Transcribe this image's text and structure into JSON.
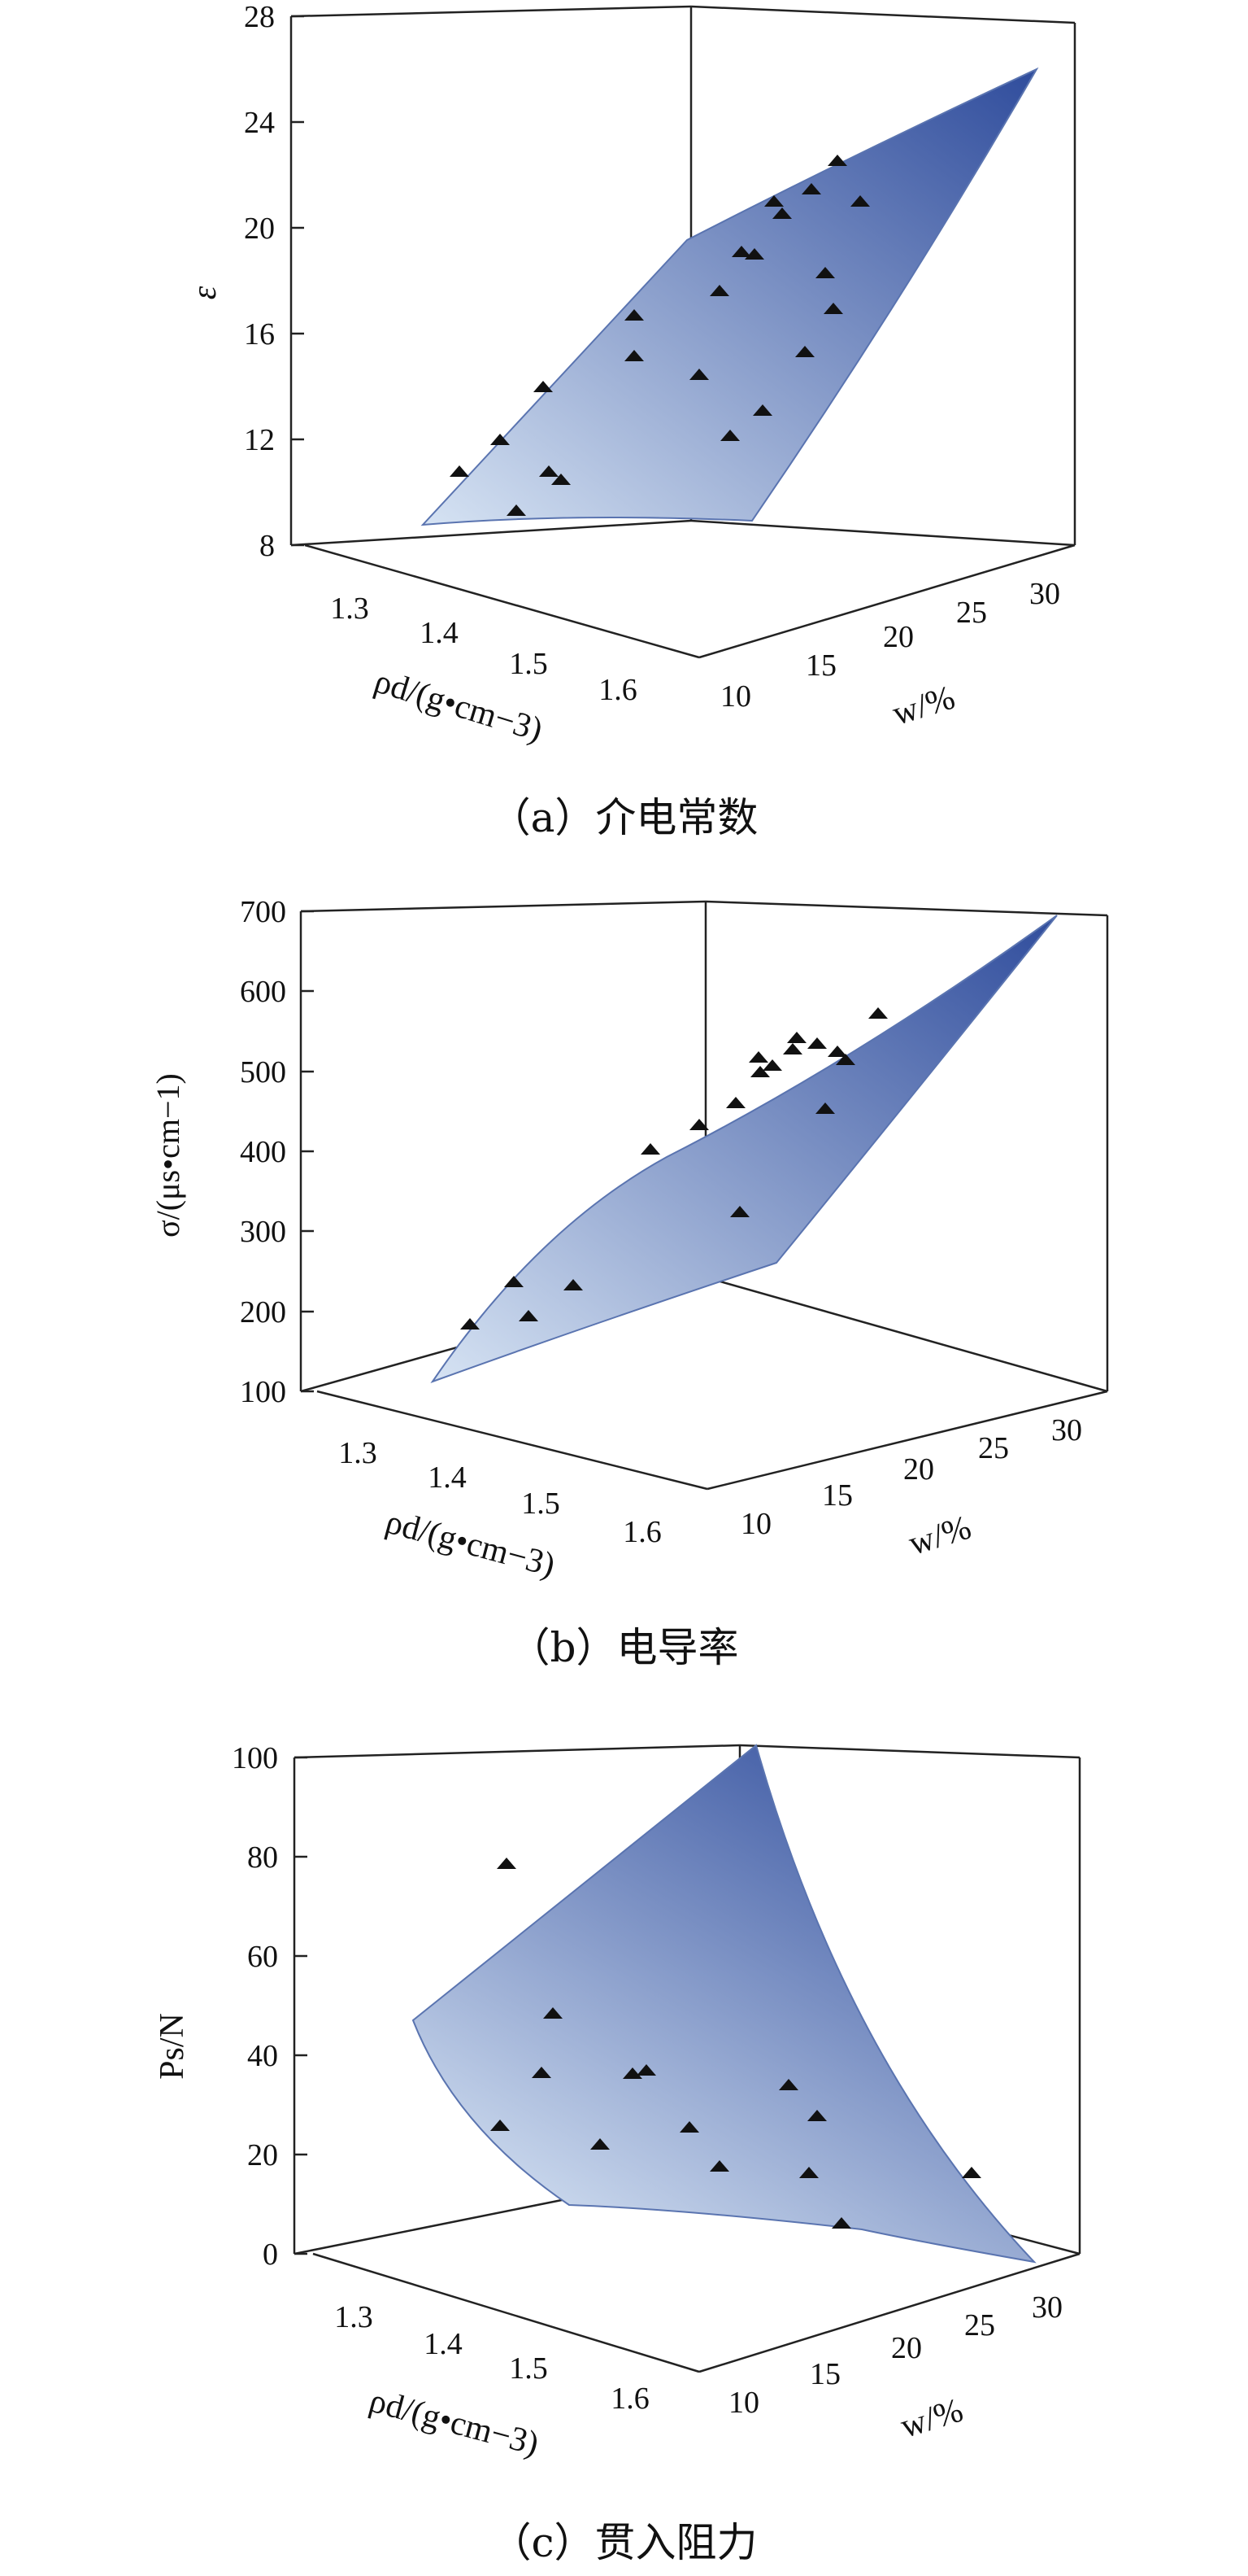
{
  "chart_data": [
    {
      "type": "surface3d",
      "caption": "（a）介电常数",
      "zlabel": "ε",
      "xlabel": "ρd/(g•cm−3)",
      "ylabel": "w/%",
      "z_ticks": [
        "8",
        "12",
        "16",
        "20",
        "24",
        "28"
      ],
      "x_ticks": [
        "1.3",
        "1.4",
        "1.5",
        "1.6"
      ],
      "y_ticks": [
        "10",
        "15",
        "20",
        "25",
        "30"
      ],
      "colors": {
        "surface_low": "#d6e3f3",
        "surface_high": "#2f4c9c",
        "marker": "#111111"
      }
    },
    {
      "type": "surface3d",
      "caption": "（b）电导率",
      "zlabel": "σ/(μs•cm−1)",
      "xlabel": "ρd/(g•cm−3)",
      "ylabel": "w/%",
      "z_ticks": [
        "100",
        "200",
        "300",
        "400",
        "500",
        "600",
        "700"
      ],
      "x_ticks": [
        "1.3",
        "1.4",
        "1.5",
        "1.6"
      ],
      "y_ticks": [
        "10",
        "15",
        "20",
        "25",
        "30"
      ],
      "colors": {
        "surface_low": "#d6e3f3",
        "surface_high": "#2f4c9c",
        "marker": "#111111"
      }
    },
    {
      "type": "surface3d",
      "caption": "（c）贯入阻力",
      "zlabel": "Ps/N",
      "xlabel": "ρd/(g•cm−3)",
      "ylabel": "w/%",
      "z_ticks": [
        "0",
        "20",
        "40",
        "60",
        "80",
        "100"
      ],
      "x_ticks": [
        "1.3",
        "1.4",
        "1.5",
        "1.6"
      ],
      "y_ticks": [
        "10",
        "15",
        "20",
        "25",
        "30"
      ],
      "colors": {
        "surface_low": "#d6e3f3",
        "surface_high": "#2f4c9c",
        "marker": "#111111"
      }
    }
  ]
}
